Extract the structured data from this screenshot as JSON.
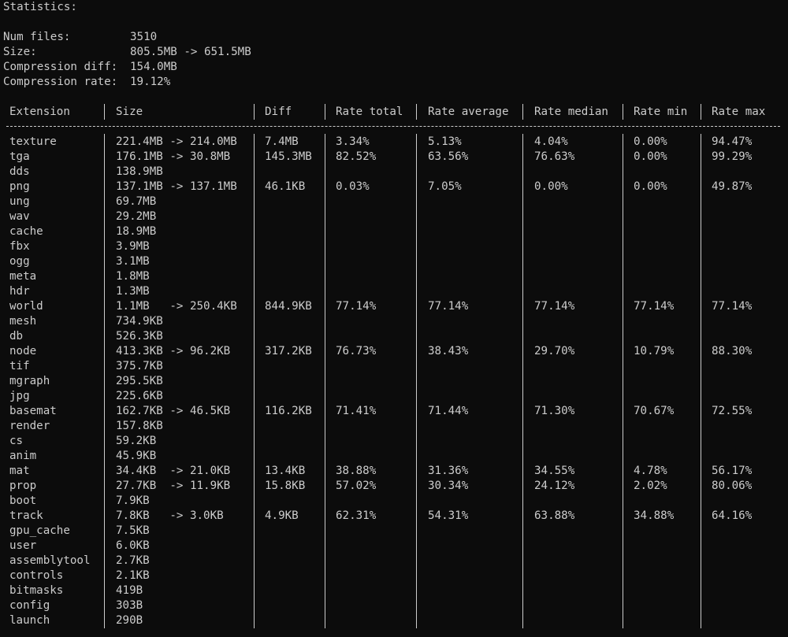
{
  "stats": {
    "title": "Statistics:",
    "num_files_label": "Num files:",
    "num_files_value": "3510",
    "size_label": "Size:",
    "size_value": "805.5MB -> 651.5MB",
    "compression_diff_label": "Compression diff:",
    "compression_diff_value": "154.0MB",
    "compression_rate_label": "Compression rate:",
    "compression_rate_value": "19.12%"
  },
  "table": {
    "headers": [
      "Extension",
      "Size",
      "Diff",
      "Rate total",
      "Rate average",
      "Rate median",
      "Rate min",
      "Rate max"
    ],
    "rows": [
      [
        "texture",
        "221.4MB -> 214.0MB",
        "7.4MB",
        "3.34%",
        "5.13%",
        "4.04%",
        "0.00%",
        "94.47%"
      ],
      [
        "tga",
        "176.1MB -> 30.8MB",
        "145.3MB",
        "82.52%",
        "63.56%",
        "76.63%",
        "0.00%",
        "99.29%"
      ],
      [
        "dds",
        "138.9MB",
        "",
        "",
        "",
        "",
        "",
        ""
      ],
      [
        "png",
        "137.1MB -> 137.1MB",
        "46.1KB",
        "0.03%",
        "7.05%",
        "0.00%",
        "0.00%",
        "49.87%"
      ],
      [
        "ung",
        "69.7MB",
        "",
        "",
        "",
        "",
        "",
        ""
      ],
      [
        "wav",
        "29.2MB",
        "",
        "",
        "",
        "",
        "",
        ""
      ],
      [
        "cache",
        "18.9MB",
        "",
        "",
        "",
        "",
        "",
        ""
      ],
      [
        "fbx",
        "3.9MB",
        "",
        "",
        "",
        "",
        "",
        ""
      ],
      [
        "ogg",
        "3.1MB",
        "",
        "",
        "",
        "",
        "",
        ""
      ],
      [
        "meta",
        "1.8MB",
        "",
        "",
        "",
        "",
        "",
        ""
      ],
      [
        "hdr",
        "1.3MB",
        "",
        "",
        "",
        "",
        "",
        ""
      ],
      [
        "world",
        "1.1MB   -> 250.4KB",
        "844.9KB",
        "77.14%",
        "77.14%",
        "77.14%",
        "77.14%",
        "77.14%"
      ],
      [
        "mesh",
        "734.9KB",
        "",
        "",
        "",
        "",
        "",
        ""
      ],
      [
        "db",
        "526.3KB",
        "",
        "",
        "",
        "",
        "",
        ""
      ],
      [
        "node",
        "413.3KB -> 96.2KB",
        "317.2KB",
        "76.73%",
        "38.43%",
        "29.70%",
        "10.79%",
        "88.30%"
      ],
      [
        "tif",
        "375.7KB",
        "",
        "",
        "",
        "",
        "",
        ""
      ],
      [
        "mgraph",
        "295.5KB",
        "",
        "",
        "",
        "",
        "",
        ""
      ],
      [
        "jpg",
        "225.6KB",
        "",
        "",
        "",
        "",
        "",
        ""
      ],
      [
        "basemat",
        "162.7KB -> 46.5KB",
        "116.2KB",
        "71.41%",
        "71.44%",
        "71.30%",
        "70.67%",
        "72.55%"
      ],
      [
        "render",
        "157.8KB",
        "",
        "",
        "",
        "",
        "",
        ""
      ],
      [
        "cs",
        "59.2KB",
        "",
        "",
        "",
        "",
        "",
        ""
      ],
      [
        "anim",
        "45.9KB",
        "",
        "",
        "",
        "",
        "",
        ""
      ],
      [
        "mat",
        "34.4KB  -> 21.0KB",
        "13.4KB",
        "38.88%",
        "31.36%",
        "34.55%",
        "4.78%",
        "56.17%"
      ],
      [
        "prop",
        "27.7KB  -> 11.9KB",
        "15.8KB",
        "57.02%",
        "30.34%",
        "24.12%",
        "2.02%",
        "80.06%"
      ],
      [
        "boot",
        "7.9KB",
        "",
        "",
        "",
        "",
        "",
        ""
      ],
      [
        "track",
        "7.8KB   -> 3.0KB",
        "4.9KB",
        "62.31%",
        "54.31%",
        "63.88%",
        "34.88%",
        "64.16%"
      ],
      [
        "gpu_cache",
        "7.5KB",
        "",
        "",
        "",
        "",
        "",
        ""
      ],
      [
        "user",
        "6.0KB",
        "",
        "",
        "",
        "",
        "",
        ""
      ],
      [
        "assemblytool",
        "2.7KB",
        "",
        "",
        "",
        "",
        "",
        ""
      ],
      [
        "controls",
        "2.1KB",
        "",
        "",
        "",
        "",
        "",
        ""
      ],
      [
        "bitmasks",
        "419B",
        "",
        "",
        "",
        "",
        "",
        ""
      ],
      [
        "config",
        "303B",
        "",
        "",
        "",
        "",
        "",
        ""
      ],
      [
        "launch",
        "290B",
        "",
        "",
        "",
        "",
        "",
        ""
      ]
    ]
  },
  "colors": {
    "background": "#0c0c0c",
    "foreground": "#cccccc"
  }
}
